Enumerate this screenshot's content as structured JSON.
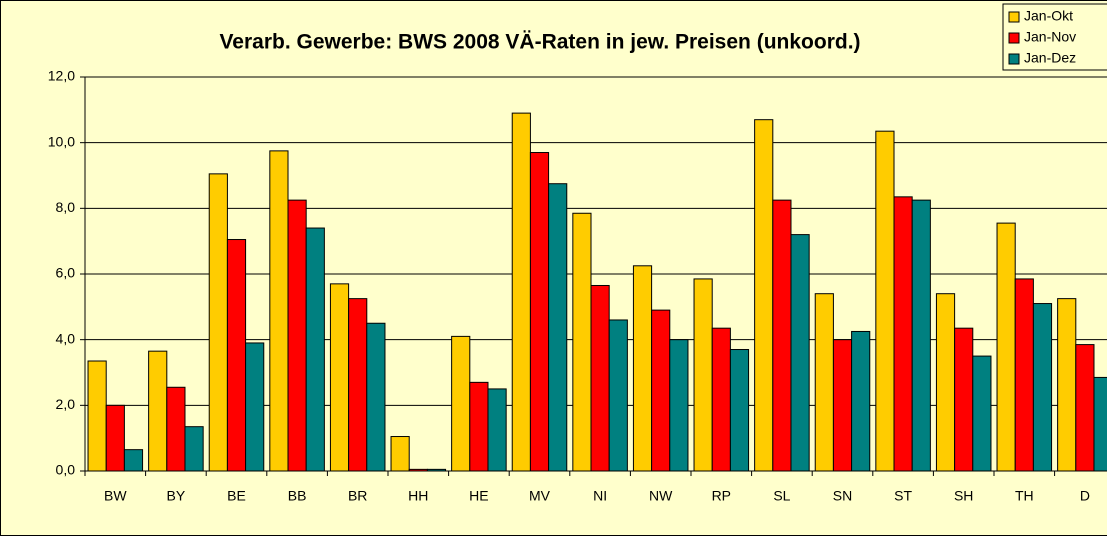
{
  "chart_data": {
    "type": "bar",
    "title": "Verarb. Gewerbe: BWS 2008 VÄ-Raten in jew. Preisen (unkoord.)",
    "categories": [
      "BW",
      "BY",
      "BE",
      "BB",
      "BR",
      "HH",
      "HE",
      "MV",
      "NI",
      "NW",
      "RP",
      "SL",
      "SN",
      "ST",
      "SH",
      "TH",
      "D"
    ],
    "series": [
      {
        "name": "Jan-Okt",
        "color": "#ffcc00",
        "values": [
          3.35,
          3.65,
          9.05,
          9.75,
          5.7,
          1.05,
          4.1,
          10.9,
          7.85,
          6.25,
          5.85,
          10.7,
          5.4,
          10.35,
          5.4,
          7.55,
          5.25
        ]
      },
      {
        "name": "Jan-Nov",
        "color": "#ff0000",
        "values": [
          2.0,
          2.55,
          7.05,
          8.25,
          5.25,
          0.05,
          2.7,
          9.7,
          5.65,
          4.9,
          4.35,
          8.25,
          4.0,
          8.35,
          4.35,
          5.85,
          3.85
        ]
      },
      {
        "name": "Jan-Dez",
        "color": "#008080",
        "values": [
          0.65,
          1.35,
          3.9,
          7.4,
          4.5,
          0.05,
          2.5,
          8.75,
          4.6,
          4.0,
          3.7,
          7.2,
          4.25,
          8.25,
          3.5,
          5.1,
          2.85
        ]
      }
    ],
    "ylim": [
      0,
      12
    ],
    "yticks": [
      {
        "value": 0,
        "label": "0,0"
      },
      {
        "value": 2,
        "label": "2,0"
      },
      {
        "value": 4,
        "label": "4,0"
      },
      {
        "value": 6,
        "label": "6,0"
      },
      {
        "value": 8,
        "label": "8,0"
      },
      {
        "value": 10,
        "label": "10,0"
      },
      {
        "value": 12,
        "label": "12,0"
      }
    ],
    "grid": true,
    "legend": "top-right"
  }
}
